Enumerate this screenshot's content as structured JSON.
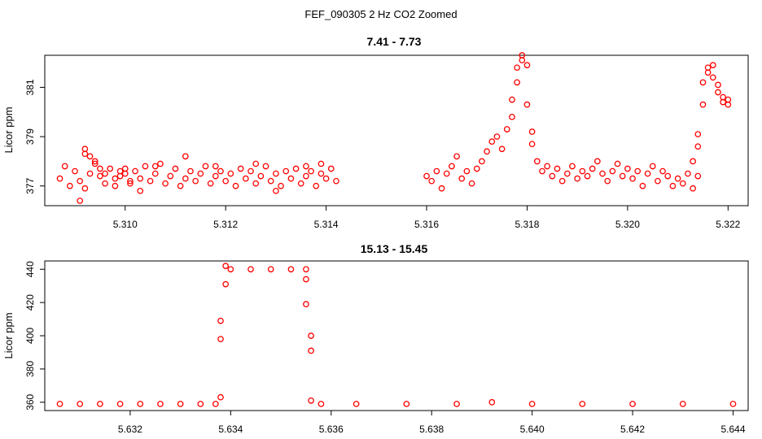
{
  "figure_title": "FEF_090305  2 Hz CO2 Zoomed",
  "point_color": "#ff0000",
  "chart_data": [
    {
      "type": "scatter",
      "title": "7.41 - 7.73",
      "xlabel": "",
      "ylabel": "Licor ppm",
      "xlim": [
        5.3084,
        5.3224
      ],
      "ylim": [
        376.2,
        382.3
      ],
      "x_ticks": [
        "5.310",
        "5.312",
        "5.314",
        "5.316",
        "5.318",
        "5.320",
        "5.322"
      ],
      "x_tick_values": [
        5.31,
        5.312,
        5.314,
        5.316,
        5.318,
        5.32,
        5.322
      ],
      "y_ticks": [
        "377",
        "379",
        "381"
      ],
      "y_tick_values": [
        377,
        379,
        381
      ],
      "series": [
        {
          "points": [
            [
              5.3087,
              377.3
            ],
            [
              5.3088,
              377.8
            ],
            [
              5.3089,
              377.0
            ],
            [
              5.309,
              377.6
            ],
            [
              5.3091,
              377.2
            ],
            [
              5.3092,
              376.9
            ],
            [
              5.3093,
              377.5
            ],
            [
              5.3094,
              377.9
            ],
            [
              5.3095,
              377.4
            ],
            [
              5.3096,
              377.1
            ],
            [
              5.3097,
              377.7
            ],
            [
              5.3098,
              377.3
            ],
            [
              5.3099,
              377.6
            ],
            [
              5.31,
              377.5
            ],
            [
              5.3101,
              377.2
            ],
            [
              5.3091,
              376.4
            ],
            [
              5.3092,
              378.3
            ],
            [
              5.3092,
              378.5
            ],
            [
              5.3093,
              378.2
            ],
            [
              5.3094,
              378.0
            ],
            [
              5.3095,
              377.7
            ],
            [
              5.3096,
              377.5
            ],
            [
              5.3098,
              377.0
            ],
            [
              5.3099,
              377.4
            ],
            [
              5.3101,
              377.1
            ],
            [
              5.3102,
              377.6
            ],
            [
              5.3103,
              377.3
            ],
            [
              5.3104,
              377.8
            ],
            [
              5.3105,
              377.2
            ],
            [
              5.3106,
              377.5
            ],
            [
              5.3107,
              377.9
            ],
            [
              5.3108,
              377.1
            ],
            [
              5.3109,
              377.4
            ],
            [
              5.311,
              377.7
            ],
            [
              5.3111,
              377.0
            ],
            [
              5.3112,
              377.3
            ],
            [
              5.3113,
              377.6
            ],
            [
              5.3112,
              378.2
            ],
            [
              5.3114,
              377.2
            ],
            [
              5.3115,
              377.5
            ],
            [
              5.3116,
              377.8
            ],
            [
              5.3117,
              377.1
            ],
            [
              5.3118,
              377.4
            ],
            [
              5.3119,
              377.6
            ],
            [
              5.312,
              377.2
            ],
            [
              5.3121,
              377.5
            ],
            [
              5.3122,
              377.0
            ],
            [
              5.3123,
              377.7
            ],
            [
              5.3124,
              377.3
            ],
            [
              5.3125,
              377.6
            ],
            [
              5.3126,
              377.1
            ],
            [
              5.3127,
              377.4
            ],
            [
              5.3128,
              377.8
            ],
            [
              5.3129,
              377.2
            ],
            [
              5.313,
              377.5
            ],
            [
              5.3131,
              377.0
            ],
            [
              5.3132,
              377.6
            ],
            [
              5.3133,
              377.3
            ],
            [
              5.3134,
              377.7
            ],
            [
              5.3135,
              377.1
            ],
            [
              5.3136,
              377.4
            ],
            [
              5.3137,
              377.6
            ],
            [
              5.3138,
              377.0
            ],
            [
              5.3139,
              377.5
            ],
            [
              5.314,
              377.3
            ],
            [
              5.3141,
              377.7
            ],
            [
              5.3142,
              377.2
            ],
            [
              5.3139,
              377.9
            ],
            [
              5.3136,
              377.8
            ],
            [
              5.3126,
              377.9
            ],
            [
              5.3118,
              377.8
            ],
            [
              5.3106,
              377.8
            ],
            [
              5.31,
              377.7
            ],
            [
              5.3103,
              376.8
            ],
            [
              5.313,
              376.8
            ],
            [
              5.316,
              377.4
            ],
            [
              5.3161,
              377.2
            ],
            [
              5.3162,
              377.6
            ],
            [
              5.3163,
              376.9
            ],
            [
              5.3164,
              377.5
            ],
            [
              5.3165,
              377.8
            ],
            [
              5.3166,
              378.2
            ],
            [
              5.3167,
              377.3
            ],
            [
              5.3168,
              377.6
            ],
            [
              5.3169,
              377.1
            ],
            [
              5.317,
              377.7
            ],
            [
              5.3171,
              378.0
            ],
            [
              5.3172,
              378.4
            ],
            [
              5.3173,
              378.8
            ],
            [
              5.3174,
              379.0
            ],
            [
              5.3175,
              378.5
            ],
            [
              5.3176,
              379.3
            ],
            [
              5.3177,
              379.8
            ],
            [
              5.3177,
              380.5
            ],
            [
              5.3178,
              381.2
            ],
            [
              5.3178,
              381.8
            ],
            [
              5.3179,
              382.1
            ],
            [
              5.3179,
              382.3
            ],
            [
              5.318,
              381.9
            ],
            [
              5.318,
              380.3
            ],
            [
              5.3181,
              379.2
            ],
            [
              5.3181,
              378.7
            ],
            [
              5.3182,
              378.0
            ],
            [
              5.3183,
              377.6
            ],
            [
              5.3184,
              377.8
            ],
            [
              5.3185,
              377.4
            ],
            [
              5.3186,
              377.7
            ],
            [
              5.3187,
              377.2
            ],
            [
              5.3188,
              377.5
            ],
            [
              5.3189,
              377.8
            ],
            [
              5.319,
              377.3
            ],
            [
              5.3191,
              377.6
            ],
            [
              5.3192,
              377.4
            ],
            [
              5.3193,
              377.7
            ],
            [
              5.3194,
              378.0
            ],
            [
              5.3195,
              377.5
            ],
            [
              5.3196,
              377.2
            ],
            [
              5.3197,
              377.6
            ],
            [
              5.3198,
              377.9
            ],
            [
              5.3199,
              377.4
            ],
            [
              5.32,
              377.7
            ],
            [
              5.3201,
              377.3
            ],
            [
              5.3202,
              377.6
            ],
            [
              5.3203,
              377.0
            ],
            [
              5.3204,
              377.5
            ],
            [
              5.3205,
              377.8
            ],
            [
              5.3206,
              377.2
            ],
            [
              5.3207,
              377.6
            ],
            [
              5.3208,
              377.4
            ],
            [
              5.3209,
              377.0
            ],
            [
              5.321,
              377.3
            ],
            [
              5.3211,
              377.1
            ],
            [
              5.3212,
              377.5
            ],
            [
              5.3213,
              376.9
            ],
            [
              5.3214,
              377.4
            ],
            [
              5.3213,
              378.0
            ],
            [
              5.3214,
              378.6
            ],
            [
              5.3214,
              379.1
            ],
            [
              5.3215,
              380.3
            ],
            [
              5.3215,
              381.2
            ],
            [
              5.3216,
              381.8
            ],
            [
              5.3216,
              381.6
            ],
            [
              5.3217,
              381.9
            ],
            [
              5.3217,
              381.4
            ],
            [
              5.3218,
              381.1
            ],
            [
              5.3218,
              380.8
            ],
            [
              5.3219,
              380.6
            ],
            [
              5.3219,
              380.4
            ],
            [
              5.322,
              380.3
            ],
            [
              5.322,
              380.5
            ]
          ]
        }
      ]
    },
    {
      "type": "scatter",
      "title": "15.13 - 15.45",
      "xlabel": "",
      "ylabel": "Licor ppm",
      "xlim": [
        5.6303,
        5.6443
      ],
      "ylim": [
        355,
        445
      ],
      "x_ticks": [
        "5.632",
        "5.634",
        "5.636",
        "5.638",
        "5.640",
        "5.642",
        "5.644"
      ],
      "x_tick_values": [
        5.632,
        5.634,
        5.636,
        5.638,
        5.64,
        5.642,
        5.644
      ],
      "y_ticks": [
        "360",
        "380",
        "400",
        "420",
        "440"
      ],
      "y_tick_values": [
        360,
        380,
        400,
        420,
        440
      ],
      "series": [
        {
          "points": [
            [
              5.6306,
              359
            ],
            [
              5.631,
              359
            ],
            [
              5.6314,
              359
            ],
            [
              5.6318,
              359
            ],
            [
              5.6322,
              359
            ],
            [
              5.6326,
              359
            ],
            [
              5.633,
              359
            ],
            [
              5.6334,
              359
            ],
            [
              5.6337,
              359
            ],
            [
              5.6338,
              363
            ],
            [
              5.6338,
              398
            ],
            [
              5.6338,
              409
            ],
            [
              5.6339,
              431
            ],
            [
              5.6339,
              442
            ],
            [
              5.634,
              440
            ],
            [
              5.6344,
              440
            ],
            [
              5.6348,
              440
            ],
            [
              5.6352,
              440
            ],
            [
              5.6355,
              440
            ],
            [
              5.6355,
              434
            ],
            [
              5.6355,
              419
            ],
            [
              5.6356,
              400
            ],
            [
              5.6356,
              391
            ],
            [
              5.6356,
              361
            ],
            [
              5.6358,
              359
            ],
            [
              5.6365,
              359
            ],
            [
              5.6375,
              359
            ],
            [
              5.6385,
              359
            ],
            [
              5.6392,
              360
            ],
            [
              5.64,
              359
            ],
            [
              5.641,
              359
            ],
            [
              5.642,
              359
            ],
            [
              5.643,
              359
            ],
            [
              5.644,
              359
            ]
          ]
        }
      ]
    }
  ]
}
